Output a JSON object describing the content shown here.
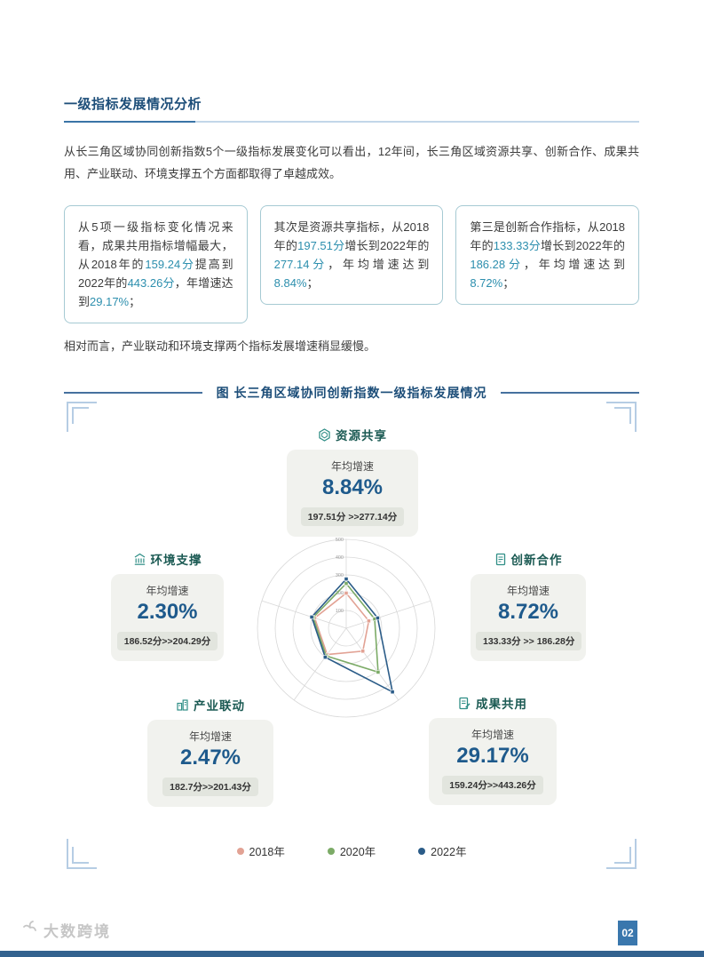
{
  "page": {
    "section_title": "一级指标发展情况分析",
    "intro": "从长三角区域协同创新指数5个一级指标发展变化可以看出，12年间，长三角区域资源共享、创新合作、成果共用、产业联动、环境支撑五个方面都取得了卓越成效。",
    "note": "相对而言，产业联动和环境支撑两个指标发展增速稍显缓慢。",
    "figure_caption": "图 长三角区域协同创新指数一级指标发展情况",
    "page_number": "02",
    "watermark": "大数跨境"
  },
  "highlight_boxes": [
    {
      "segments": [
        {
          "t": "从5项一级指标变化情况来看，成果共用指标增幅最大，从2018年的",
          "hl": false
        },
        {
          "t": "159.24分",
          "hl": true
        },
        {
          "t": "提高到2022年的",
          "hl": false
        },
        {
          "t": "443.26分",
          "hl": true
        },
        {
          "t": "，年增速达到",
          "hl": false
        },
        {
          "t": "29.17%",
          "hl": true
        },
        {
          "t": "；",
          "hl": false
        }
      ]
    },
    {
      "segments": [
        {
          "t": "其次是资源共享指标，从2018年的",
          "hl": false
        },
        {
          "t": "197.51分",
          "hl": true
        },
        {
          "t": "增长到2022年的",
          "hl": false
        },
        {
          "t": "277.14分",
          "hl": true
        },
        {
          "t": "，年均增速达到",
          "hl": false
        },
        {
          "t": "8.84%",
          "hl": true
        },
        {
          "t": "；",
          "hl": false
        }
      ]
    },
    {
      "segments": [
        {
          "t": "第三是创新合作指标，从2018年的",
          "hl": false
        },
        {
          "t": "133.33分",
          "hl": true
        },
        {
          "t": "增长到2022年的",
          "hl": false
        },
        {
          "t": "186.28分",
          "hl": true
        },
        {
          "t": "，年均增速达到",
          "hl": false
        },
        {
          "t": "8.72%",
          "hl": true
        },
        {
          "t": "；",
          "hl": false
        }
      ]
    }
  ],
  "stat_cards": [
    {
      "label": "资源共享",
      "icon": "hexagon-cube-icon",
      "rate_label": "年均增速",
      "rate": "8.84%",
      "range": "197.51分 >>277.14分"
    },
    {
      "label": "创新合作",
      "icon": "document-icon",
      "rate_label": "年均增速",
      "rate": "8.72%",
      "range": "133.33分 >> 186.28分"
    },
    {
      "label": "成果共用",
      "icon": "document-edit-icon",
      "rate_label": "年均增速",
      "rate": "29.17%",
      "range": "159.24分>>443.26分"
    },
    {
      "label": "产业联动",
      "icon": "factory-icon",
      "rate_label": "年均增速",
      "rate": "2.47%",
      "range": "182.7分>>201.43分"
    },
    {
      "label": "环境支撑",
      "icon": "building-columns-icon",
      "rate_label": "年均增速",
      "rate": "2.30%",
      "range": "186.52分>>204.29分"
    }
  ],
  "chart_data": {
    "type": "radar",
    "title": "长三角区域协同创新指数一级指标发展情况",
    "categories": [
      "资源共享",
      "创新合作",
      "成果共用",
      "产业联动",
      "环境支撑"
    ],
    "max": 500,
    "ticks": [
      100,
      200,
      300,
      400,
      500
    ],
    "grid": "circular",
    "legend_position": "bottom",
    "series": [
      {
        "name": "2018年",
        "color": "#e2a294",
        "values": [
          197.51,
          133.33,
          159.24,
          182.7,
          186.52
        ]
      },
      {
        "name": "2020年",
        "color": "#7cab67",
        "values": [
          252,
          168,
          305,
          192,
          196
        ]
      },
      {
        "name": "2022年",
        "color": "#2b5c88",
        "values": [
          277.14,
          186.28,
          443.26,
          201.43,
          204.29
        ]
      }
    ]
  }
}
